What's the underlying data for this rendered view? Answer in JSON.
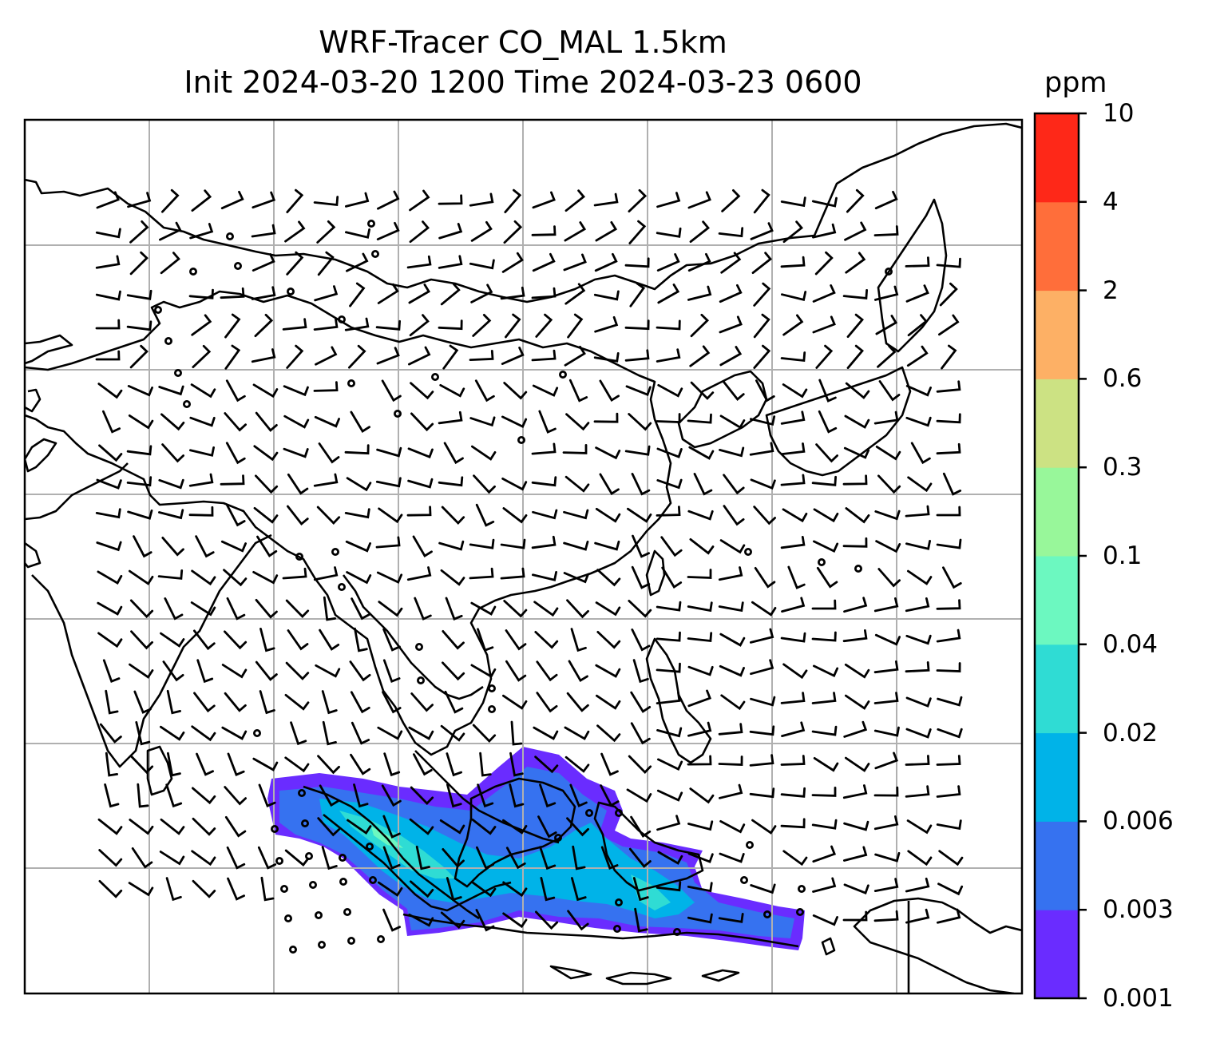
{
  "title": {
    "line1": "WRF-Tracer CO_MAL 1.5km",
    "line2": "Init 2024-03-20 1200 Time 2024-03-23 0600"
  },
  "colorbar": {
    "unit": "ppm",
    "ticks": [
      "0.001",
      "0.003",
      "0.006",
      "0.02",
      "0.04",
      "0.1",
      "0.3",
      "0.6",
      "2",
      "4",
      "10"
    ],
    "colors": [
      "#6a2cff",
      "#3672f0",
      "#00b3e8",
      "#2fdcd4",
      "#6cf8c0",
      "#98f79a",
      "#cce283",
      "#fdb065",
      "#ff6e3a",
      "#fe2818"
    ]
  },
  "map": {
    "gridline_color": "#b0b0b0",
    "coastline_color": "#000000",
    "wind_barb_color": "#000000"
  }
}
